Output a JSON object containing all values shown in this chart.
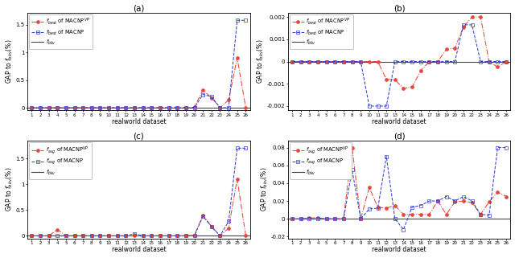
{
  "x": [
    1,
    2,
    3,
    4,
    5,
    6,
    7,
    8,
    9,
    10,
    11,
    12,
    13,
    14,
    15,
    16,
    17,
    18,
    19,
    20,
    21,
    22,
    23,
    24,
    25,
    26
  ],
  "xtick_labels_abcd": [
    "1",
    "2",
    "3",
    "4",
    "5",
    "6",
    "7",
    "8",
    "9",
    "10",
    "11",
    "12",
    "13",
    "14",
    "15",
    "16",
    "17",
    "18",
    "19",
    "20",
    "21",
    "22",
    "23",
    "24",
    "25",
    "26"
  ],
  "xtick_labels_a": [
    "1",
    "2",
    "3",
    "4",
    "5",
    "6",
    "7",
    "8",
    "9",
    "10",
    "11",
    "12",
    "13",
    "14",
    "15",
    "16",
    "17",
    "18",
    "19",
    "20",
    "21",
    "22",
    "23",
    "24",
    "25",
    "26"
  ],
  "title_a": "(a)",
  "title_b": "(b)",
  "title_c": "(c)",
  "title_d": "(d)",
  "xlabel": "realworld dataset",
  "a_macnpvp": [
    0,
    0,
    0,
    0,
    0,
    0,
    0,
    0,
    0,
    0,
    0,
    0,
    0,
    0,
    0,
    0,
    0,
    0,
    0,
    0.01,
    0.32,
    0.18,
    0.0,
    0.14,
    0.9,
    0.0
  ],
  "a_macnp": [
    0,
    0,
    0,
    0,
    0,
    0,
    0,
    0,
    0,
    0,
    0,
    0,
    0,
    0,
    0,
    0,
    0,
    0,
    0.0,
    0.0,
    0.24,
    0.2,
    0.0,
    0.0,
    1.58,
    1.58
  ],
  "b_macnpvp": [
    0,
    0,
    0,
    0,
    0,
    0,
    0,
    0,
    0,
    0,
    0,
    -0.0008,
    -0.00082,
    -0.0012,
    -0.00115,
    -0.00042,
    0,
    0,
    0.00055,
    0.0006,
    0.00155,
    0.002,
    0.002,
    0.0,
    -0.00025,
    0.0
  ],
  "b_macnp": [
    0,
    0,
    0,
    0,
    0,
    0,
    0,
    0,
    0,
    -0.002,
    -0.002,
    -0.002,
    0,
    0,
    0,
    0,
    0,
    0,
    0,
    0,
    0.00165,
    0.00165,
    0,
    0,
    0,
    0
  ],
  "c_macnpvp": [
    0,
    0,
    0,
    0.12,
    0,
    0,
    0,
    0,
    0,
    0,
    0,
    0,
    0,
    0,
    0,
    0,
    0,
    0,
    0,
    0.01,
    0.4,
    0.18,
    0,
    0.15,
    1.1,
    0
  ],
  "c_macnp": [
    0,
    0,
    0,
    0,
    0,
    0,
    0,
    0,
    0,
    0,
    0,
    0,
    0.04,
    0,
    0,
    0,
    0,
    0,
    0,
    0,
    0.38,
    0.18,
    0,
    0.28,
    1.7,
    1.7
  ],
  "d_macnpvp": [
    0,
    0,
    0.001,
    0.001,
    0,
    0,
    0,
    0.08,
    0,
    0.035,
    0.013,
    0.012,
    0.015,
    0.005,
    0.005,
    0.005,
    0.005,
    0.02,
    0.005,
    0.019,
    0.02,
    0.018,
    0.005,
    0.019,
    0.03,
    0.025
  ],
  "d_macnp": [
    0,
    0,
    0,
    0,
    0,
    0,
    0,
    0.055,
    0,
    0.011,
    0.012,
    0.07,
    0.0,
    -0.012,
    0.013,
    0.015,
    0.02,
    0.02,
    0.025,
    0.02,
    0.025,
    0.02,
    0.005,
    0.004,
    0.08,
    0.08
  ],
  "color_vp": "#e8453c",
  "color_macnp": "#3344cc",
  "color_bkv": "#444444",
  "ylim_a": [
    -0.05,
    1.72
  ],
  "ylim_b": [
    -0.0022,
    0.0022
  ],
  "ylim_c": [
    -0.05,
    1.85
  ],
  "ylim_d": [
    -0.022,
    0.088
  ],
  "yticks_a": [
    0.0,
    0.5,
    1.0,
    1.5
  ],
  "yticks_b": [
    -0.002,
    -0.001,
    0.0,
    0.001,
    0.002
  ],
  "yticks_c": [
    0.0,
    0.5,
    1.0,
    1.5
  ],
  "yticks_d": [
    -0.02,
    0.0,
    0.02,
    0.04,
    0.06,
    0.08
  ],
  "ytick_labels_a": [
    "0",
    "0.5",
    "1",
    "1.5"
  ],
  "ytick_labels_b": [
    "-0.002",
    "-0.001",
    "0",
    "0.001",
    "0.002"
  ],
  "ytick_labels_c": [
    "0",
    "0.5",
    "1",
    "1.5"
  ],
  "ytick_labels_d": [
    "-0.02",
    "0",
    "0.02",
    "0.04",
    "0.06",
    "0.08"
  ]
}
